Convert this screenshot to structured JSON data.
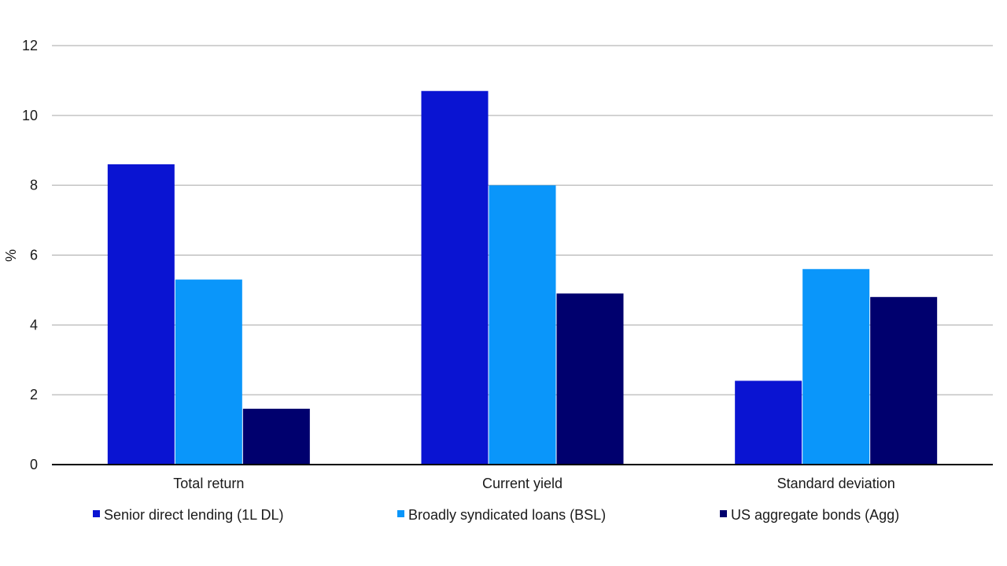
{
  "chart_data": {
    "type": "bar",
    "title": "",
    "xlabel": "",
    "ylabel": "%",
    "ylim": [
      0,
      12
    ],
    "yticks": [
      "0",
      "2",
      "4",
      "6",
      "8",
      "10",
      "12"
    ],
    "grid": true,
    "legend_position": "bottom",
    "categories": [
      "Total return",
      "Current yield",
      "Standard deviation"
    ],
    "series": [
      {
        "name": "Senior direct lending (1L DL)",
        "color": "#0a14d2",
        "values": [
          8.6,
          10.7,
          2.4
        ]
      },
      {
        "name": "Broadly syndicated loans (BSL)",
        "color": "#0a96fa",
        "values": [
          5.3,
          8.0,
          5.6
        ]
      },
      {
        "name": "US aggregate bonds (Agg)",
        "color": "#00006e",
        "values": [
          1.6,
          4.9,
          4.8
        ]
      }
    ]
  }
}
